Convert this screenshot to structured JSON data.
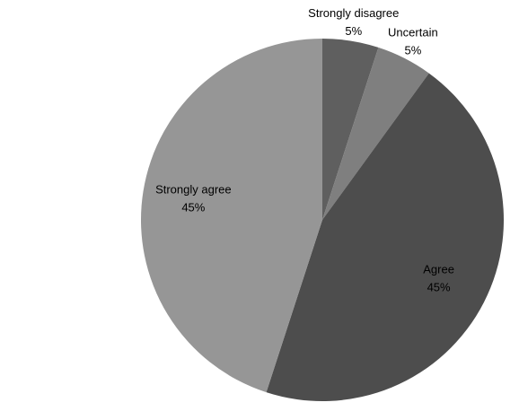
{
  "chart_data": {
    "type": "pie",
    "categories": [
      "Strongly disagree",
      "Uncertain",
      "Agree",
      "Strongly agree"
    ],
    "values": [
      5,
      5,
      45,
      45
    ],
    "value_labels": [
      "5%",
      "5%",
      "45%",
      "45%"
    ],
    "colors": [
      "#5f5f5f",
      "#7f7f7f",
      "#4d4d4d",
      "#969696"
    ]
  }
}
